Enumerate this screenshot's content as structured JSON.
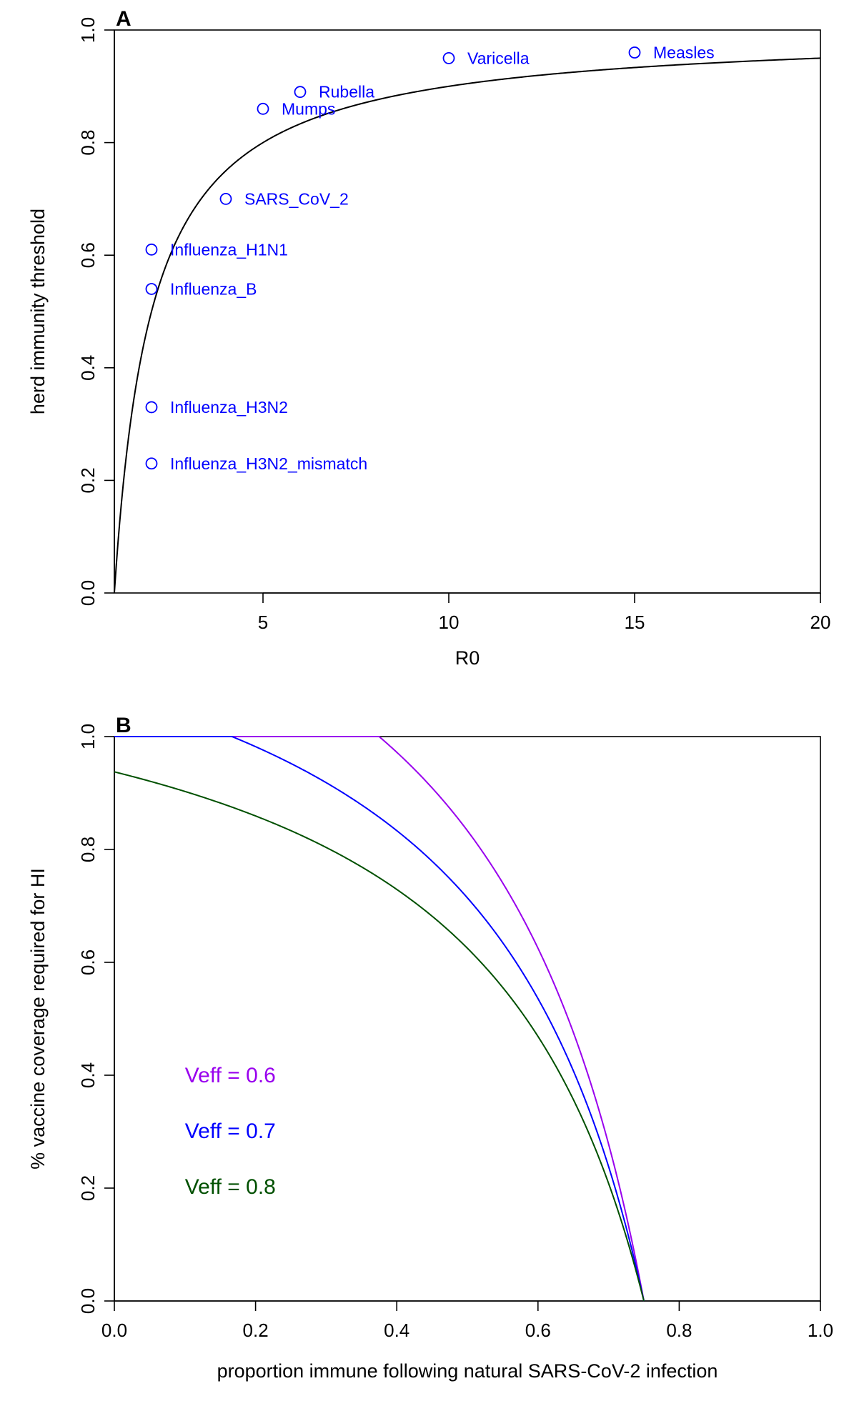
{
  "chart_data": [
    {
      "panel": "A",
      "type": "scatter",
      "xlabel": "R0",
      "ylabel": "herd immunity threshold",
      "xlim": [
        1,
        20
      ],
      "ylim": [
        0,
        1
      ],
      "x_ticks": [
        5,
        10,
        15,
        20
      ],
      "y_ticks": [
        0.0,
        0.2,
        0.4,
        0.6,
        0.8,
        1.0
      ],
      "x_tick_labels": [
        "5",
        "10",
        "15",
        "20"
      ],
      "y_tick_labels": [
        "0.0",
        "0.2",
        "0.4",
        "0.6",
        "0.8",
        "1.0"
      ],
      "curve": {
        "formula": "1 - 1/R0",
        "color": "#000000"
      },
      "point_color": "#0000ff",
      "points": [
        {
          "label": "Measles",
          "x": 15,
          "y": 0.96
        },
        {
          "label": "Varicella",
          "x": 10,
          "y": 0.95
        },
        {
          "label": "Rubella",
          "x": 6,
          "y": 0.89
        },
        {
          "label": "Mumps",
          "x": 5,
          "y": 0.86
        },
        {
          "label": "SARS_CoV_2",
          "x": 4,
          "y": 0.7
        },
        {
          "label": "Influenza_H1N1",
          "x": 2,
          "y": 0.61
        },
        {
          "label": "Influenza_B",
          "x": 2,
          "y": 0.54
        },
        {
          "label": "Influenza_H3N2",
          "x": 2,
          "y": 0.33
        },
        {
          "label": "Influenza_H3N2_mismatch",
          "x": 2,
          "y": 0.23
        }
      ],
      "grid": false
    },
    {
      "panel": "B",
      "type": "line",
      "xlabel": "proportion immune following natural SARS-CoV-2 infection",
      "ylabel": "% vaccine coverage required for HI",
      "xlim": [
        0,
        1
      ],
      "ylim": [
        0,
        1
      ],
      "x_ticks": [
        0.0,
        0.2,
        0.4,
        0.6,
        0.8,
        1.0
      ],
      "y_ticks": [
        0.0,
        0.2,
        0.4,
        0.6,
        0.8,
        1.0
      ],
      "x_tick_labels": [
        "0.0",
        "0.2",
        "0.4",
        "0.6",
        "0.8",
        "1.0"
      ],
      "y_tick_labels": [
        "0.0",
        "0.2",
        "0.4",
        "0.6",
        "0.8",
        "1.0"
      ],
      "herd_immunity_threshold": 0.75,
      "series": [
        {
          "name": "Veff = 0.6",
          "veff": 0.6,
          "color": "#9900ee"
        },
        {
          "name": "Veff = 0.7",
          "veff": 0.7,
          "color": "#0000ff"
        },
        {
          "name": "Veff = 0.8",
          "veff": 0.8,
          "color": "#005000"
        }
      ],
      "legend_position": "bottom-left",
      "grid": false
    }
  ],
  "panel_letters": [
    "A",
    "B"
  ]
}
